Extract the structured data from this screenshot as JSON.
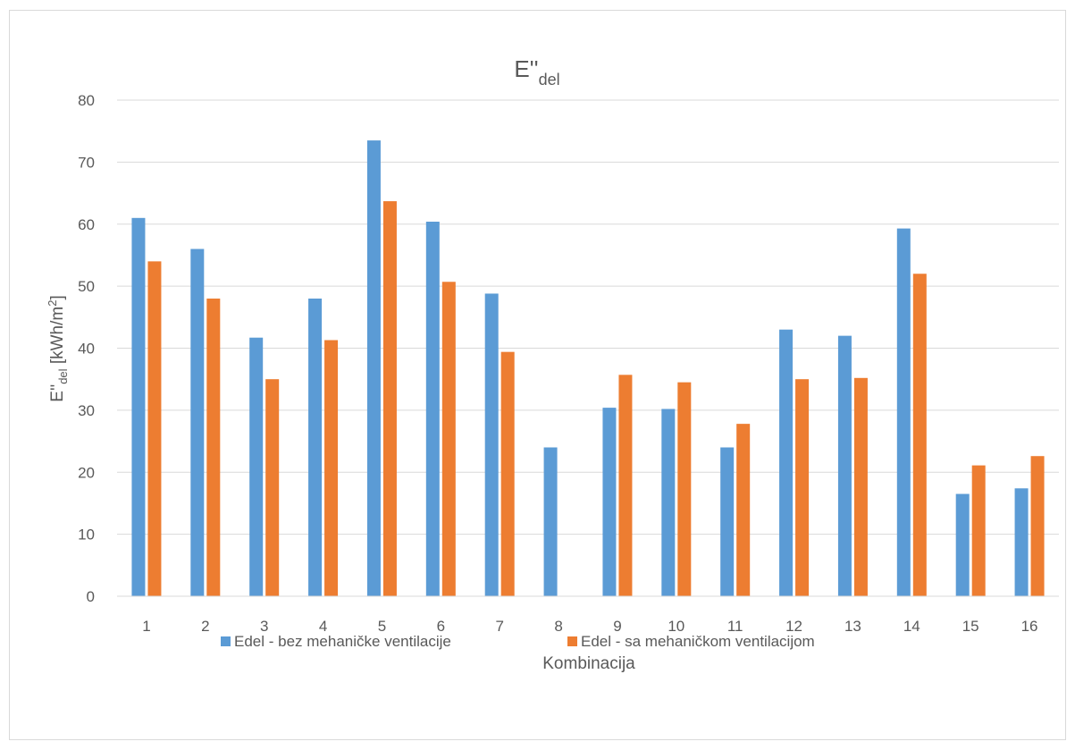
{
  "chart_data": {
    "type": "bar",
    "title_main": "E''",
    "title_sub": "del",
    "xlabel": "Kombinacija",
    "ylabel_main": "E''",
    "ylabel_sub": "del",
    "ylabel_unit": " [kWh/m",
    "ylabel_sup": "2",
    "ylabel_end": "]",
    "ylim": [
      0,
      80
    ],
    "yticks": [
      "0",
      "10",
      "20",
      "30",
      "40",
      "50",
      "60",
      "70",
      "80"
    ],
    "categories": [
      "1",
      "2",
      "3",
      "4",
      "5",
      "6",
      "7",
      "8",
      "9",
      "10",
      "11",
      "12",
      "13",
      "14",
      "15",
      "16"
    ],
    "series": [
      {
        "name": "Edel - bez mehaničke ventilacije",
        "color": "#5b9bd5",
        "values": [
          61.0,
          56.0,
          41.7,
          48.0,
          73.5,
          60.4,
          48.8,
          24.0,
          30.4,
          30.2,
          24.0,
          43.0,
          42.0,
          59.3,
          16.5,
          17.4
        ]
      },
      {
        "name": "Edel - sa mehaničkom ventilacijom",
        "color": "#ed7d31",
        "values": [
          54.0,
          48.0,
          35.0,
          41.3,
          63.7,
          50.7,
          39.4,
          null,
          35.7,
          34.5,
          27.8,
          35.0,
          35.2,
          52.0,
          21.1,
          22.6
        ]
      }
    ],
    "grid": true,
    "legend_position": "bottom"
  }
}
